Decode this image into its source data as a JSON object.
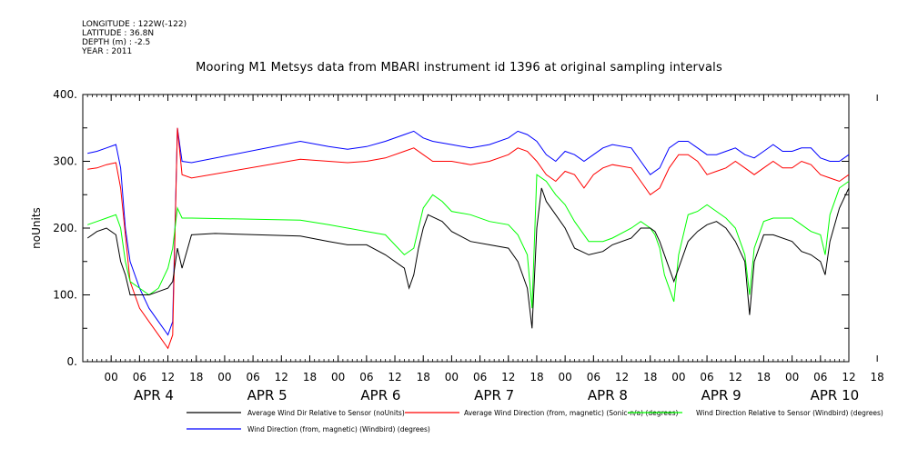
{
  "header": {
    "longitude": "LONGITUDE : 122W(-122)",
    "latitude": "LATITUDE : 36.8N",
    "depth": "DEPTH (m) : -2.5",
    "year": "YEAR : 2011"
  },
  "chart_data": {
    "type": "line",
    "title": "Mooring M1 Metsys data from MBARI instrument id 1396 at original sampling intervals",
    "ylabel": "noUnits",
    "ylim": [
      0,
      400
    ],
    "yticks": [
      "0.",
      "100.",
      "200.",
      "300.",
      "400."
    ],
    "xlim_hours": [
      -6,
      156
    ],
    "xtick_hours": [
      "00",
      "06",
      "12",
      "18",
      "00",
      "06",
      "12",
      "18",
      "00",
      "06",
      "12",
      "18",
      "00",
      "06",
      "12",
      "18",
      "00",
      "06",
      "12",
      "18",
      "00",
      "06",
      "12",
      "18",
      "00",
      "06",
      "12",
      "18"
    ],
    "day_labels": [
      "APR  4",
      "APR  5",
      "APR  6",
      "APR  7",
      "APR  8",
      "APR  9",
      "APR 10"
    ],
    "grid": false,
    "legend_position": "bottom",
    "series": [
      {
        "name": "Average Wind Dir Relative to Sensor (noUnits)",
        "color": "#000000",
        "points": [
          [
            -5,
            185
          ],
          [
            -3,
            195
          ],
          [
            -1,
            200
          ],
          [
            1,
            190
          ],
          [
            2,
            150
          ],
          [
            3,
            130
          ],
          [
            4,
            100
          ],
          [
            6,
            100
          ],
          [
            8,
            100
          ],
          [
            10,
            105
          ],
          [
            12,
            110
          ],
          [
            13,
            120
          ],
          [
            14,
            170
          ],
          [
            15,
            140
          ],
          [
            17,
            190
          ],
          [
            22,
            192
          ],
          [
            40,
            188
          ],
          [
            46,
            180
          ],
          [
            50,
            175
          ],
          [
            54,
            175
          ],
          [
            58,
            160
          ],
          [
            62,
            140
          ],
          [
            63,
            110
          ],
          [
            64,
            130
          ],
          [
            65,
            170
          ],
          [
            66,
            200
          ],
          [
            67,
            220
          ],
          [
            70,
            210
          ],
          [
            72,
            195
          ],
          [
            76,
            180
          ],
          [
            80,
            175
          ],
          [
            84,
            170
          ],
          [
            86,
            150
          ],
          [
            88,
            110
          ],
          [
            89,
            50
          ],
          [
            90,
            200
          ],
          [
            91,
            260
          ],
          [
            92,
            240
          ],
          [
            94,
            220
          ],
          [
            96,
            200
          ],
          [
            98,
            170
          ],
          [
            101,
            160
          ],
          [
            104,
            165
          ],
          [
            106,
            175
          ],
          [
            110,
            185
          ],
          [
            112,
            200
          ],
          [
            114,
            200
          ],
          [
            115,
            195
          ],
          [
            116,
            180
          ],
          [
            117,
            160
          ],
          [
            118,
            140
          ],
          [
            119,
            120
          ],
          [
            120,
            140
          ],
          [
            122,
            180
          ],
          [
            124,
            195
          ],
          [
            126,
            205
          ],
          [
            128,
            210
          ],
          [
            130,
            200
          ],
          [
            132,
            180
          ],
          [
            134,
            150
          ],
          [
            135,
            70
          ],
          [
            136,
            150
          ],
          [
            138,
            190
          ],
          [
            140,
            190
          ],
          [
            144,
            180
          ],
          [
            146,
            165
          ],
          [
            148,
            160
          ],
          [
            150,
            150
          ],
          [
            151,
            130
          ],
          [
            152,
            180
          ],
          [
            154,
            230
          ],
          [
            156,
            260
          ]
        ]
      },
      {
        "name": "Average Wind Direction (from, magnetic) (Sonic-n/a) (degrees)",
        "color": "#ff0000",
        "points": [
          [
            -5,
            288
          ],
          [
            -3,
            290
          ],
          [
            -1,
            295
          ],
          [
            1,
            298
          ],
          [
            2,
            260
          ],
          [
            3,
            190
          ],
          [
            4,
            120
          ],
          [
            6,
            80
          ],
          [
            8,
            60
          ],
          [
            10,
            40
          ],
          [
            12,
            20
          ],
          [
            13,
            40
          ],
          [
            14,
            350
          ],
          [
            15,
            280
          ],
          [
            17,
            275
          ],
          [
            40,
            303
          ],
          [
            46,
            300
          ],
          [
            50,
            298
          ],
          [
            54,
            300
          ],
          [
            58,
            305
          ],
          [
            62,
            315
          ],
          [
            64,
            320
          ],
          [
            66,
            310
          ],
          [
            68,
            300
          ],
          [
            72,
            300
          ],
          [
            76,
            295
          ],
          [
            80,
            300
          ],
          [
            84,
            310
          ],
          [
            86,
            320
          ],
          [
            88,
            315
          ],
          [
            90,
            300
          ],
          [
            92,
            280
          ],
          [
            94,
            270
          ],
          [
            96,
            285
          ],
          [
            98,
            280
          ],
          [
            100,
            260
          ],
          [
            102,
            280
          ],
          [
            104,
            290
          ],
          [
            106,
            295
          ],
          [
            110,
            290
          ],
          [
            112,
            270
          ],
          [
            114,
            250
          ],
          [
            116,
            260
          ],
          [
            118,
            290
          ],
          [
            120,
            310
          ],
          [
            122,
            310
          ],
          [
            124,
            300
          ],
          [
            126,
            280
          ],
          [
            128,
            285
          ],
          [
            130,
            290
          ],
          [
            132,
            300
          ],
          [
            134,
            290
          ],
          [
            136,
            280
          ],
          [
            138,
            290
          ],
          [
            140,
            300
          ],
          [
            142,
            290
          ],
          [
            144,
            290
          ],
          [
            146,
            300
          ],
          [
            148,
            295
          ],
          [
            150,
            280
          ],
          [
            152,
            275
          ],
          [
            154,
            270
          ],
          [
            156,
            280
          ]
        ]
      },
      {
        "name": "Wind Direction Relative to Sensor (Windbird) (degrees)",
        "color": "#00ff00",
        "points": [
          [
            -5,
            205
          ],
          [
            -3,
            210
          ],
          [
            -1,
            215
          ],
          [
            1,
            220
          ],
          [
            2,
            200
          ],
          [
            3,
            150
          ],
          [
            4,
            120
          ],
          [
            6,
            110
          ],
          [
            8,
            100
          ],
          [
            10,
            110
          ],
          [
            12,
            140
          ],
          [
            13,
            170
          ],
          [
            14,
            230
          ],
          [
            15,
            215
          ],
          [
            17,
            215
          ],
          [
            40,
            212
          ],
          [
            46,
            205
          ],
          [
            50,
            200
          ],
          [
            54,
            195
          ],
          [
            58,
            190
          ],
          [
            62,
            160
          ],
          [
            64,
            170
          ],
          [
            66,
            230
          ],
          [
            68,
            250
          ],
          [
            70,
            240
          ],
          [
            72,
            225
          ],
          [
            76,
            220
          ],
          [
            80,
            210
          ],
          [
            84,
            205
          ],
          [
            86,
            190
          ],
          [
            88,
            160
          ],
          [
            89,
            80
          ],
          [
            90,
            280
          ],
          [
            92,
            270
          ],
          [
            94,
            250
          ],
          [
            96,
            235
          ],
          [
            98,
            210
          ],
          [
            101,
            180
          ],
          [
            104,
            180
          ],
          [
            106,
            185
          ],
          [
            110,
            200
          ],
          [
            112,
            210
          ],
          [
            114,
            200
          ],
          [
            115,
            190
          ],
          [
            116,
            170
          ],
          [
            117,
            130
          ],
          [
            118,
            110
          ],
          [
            119,
            90
          ],
          [
            120,
            160
          ],
          [
            122,
            220
          ],
          [
            124,
            225
          ],
          [
            126,
            235
          ],
          [
            128,
            225
          ],
          [
            130,
            215
          ],
          [
            132,
            200
          ],
          [
            134,
            160
          ],
          [
            135,
            100
          ],
          [
            136,
            170
          ],
          [
            138,
            210
          ],
          [
            140,
            215
          ],
          [
            144,
            215
          ],
          [
            146,
            205
          ],
          [
            148,
            195
          ],
          [
            150,
            190
          ],
          [
            151,
            160
          ],
          [
            152,
            220
          ],
          [
            154,
            260
          ],
          [
            156,
            270
          ]
        ]
      },
      {
        "name": "Wind Direction (from, magnetic) (Windbird) (degrees)",
        "color": "#0000ff",
        "points": [
          [
            -5,
            312
          ],
          [
            -3,
            315
          ],
          [
            -1,
            320
          ],
          [
            1,
            325
          ],
          [
            2,
            290
          ],
          [
            3,
            200
          ],
          [
            4,
            150
          ],
          [
            6,
            110
          ],
          [
            8,
            80
          ],
          [
            10,
            60
          ],
          [
            12,
            40
          ],
          [
            13,
            60
          ],
          [
            14,
            350
          ],
          [
            15,
            300
          ],
          [
            17,
            298
          ],
          [
            40,
            330
          ],
          [
            46,
            322
          ],
          [
            50,
            318
          ],
          [
            54,
            322
          ],
          [
            58,
            330
          ],
          [
            62,
            340
          ],
          [
            64,
            345
          ],
          [
            66,
            335
          ],
          [
            68,
            330
          ],
          [
            72,
            325
          ],
          [
            76,
            320
          ],
          [
            80,
            325
          ],
          [
            84,
            335
          ],
          [
            86,
            345
          ],
          [
            88,
            340
          ],
          [
            90,
            330
          ],
          [
            92,
            310
          ],
          [
            94,
            300
          ],
          [
            96,
            315
          ],
          [
            98,
            310
          ],
          [
            100,
            300
          ],
          [
            102,
            310
          ],
          [
            104,
            320
          ],
          [
            106,
            325
          ],
          [
            110,
            320
          ],
          [
            112,
            300
          ],
          [
            114,
            280
          ],
          [
            116,
            290
          ],
          [
            118,
            320
          ],
          [
            120,
            330
          ],
          [
            122,
            330
          ],
          [
            124,
            320
          ],
          [
            126,
            310
          ],
          [
            128,
            310
          ],
          [
            130,
            315
          ],
          [
            132,
            320
          ],
          [
            134,
            310
          ],
          [
            136,
            305
          ],
          [
            138,
            315
          ],
          [
            140,
            325
          ],
          [
            142,
            315
          ],
          [
            144,
            315
          ],
          [
            146,
            320
          ],
          [
            148,
            320
          ],
          [
            150,
            305
          ],
          [
            152,
            300
          ],
          [
            154,
            300
          ],
          [
            156,
            310
          ]
        ]
      }
    ]
  }
}
